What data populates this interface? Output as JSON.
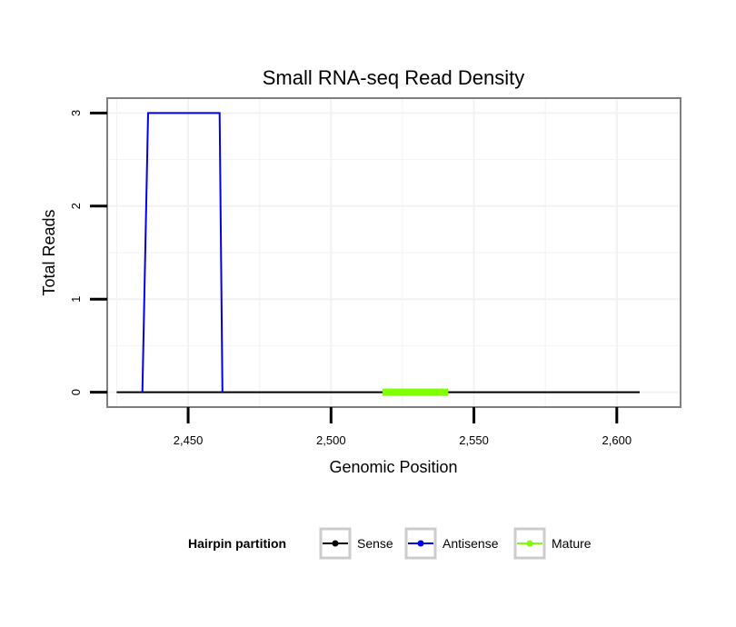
{
  "chart_data": {
    "type": "line",
    "title": "Small RNA-seq Read Density",
    "xlabel": "Genomic Position",
    "ylabel": "Total Reads",
    "xlim": [
      2422,
      2622
    ],
    "ylim": [
      -0.15,
      3.15
    ],
    "x_ticks": [
      2450,
      2500,
      2550,
      2600
    ],
    "x_tick_labels": [
      "2,450",
      "2,500",
      "2,550",
      "2,600"
    ],
    "y_ticks": [
      0,
      1,
      2,
      3
    ],
    "y_tick_labels": [
      "0",
      "1",
      "2",
      "3"
    ],
    "grid": true,
    "legend": {
      "title": "Hairpin partition",
      "position": "bottom",
      "entries": [
        {
          "name": "Sense",
          "color": "#000000"
        },
        {
          "name": "Antisense",
          "color": "#0000ee"
        },
        {
          "name": "Mature",
          "color": "#7fff00"
        }
      ]
    },
    "series": [
      {
        "name": "Sense",
        "color": "#000000",
        "x": [
          2425,
          2608
        ],
        "y": [
          0,
          0
        ]
      },
      {
        "name": "Antisense",
        "color": "#0000ee",
        "x": [
          2434,
          2436,
          2461,
          2462
        ],
        "y": [
          0,
          3,
          3,
          0
        ]
      },
      {
        "name": "Mature",
        "color": "#7fff00",
        "x": [
          2518,
          2541
        ],
        "y": [
          0,
          0
        ]
      }
    ]
  }
}
